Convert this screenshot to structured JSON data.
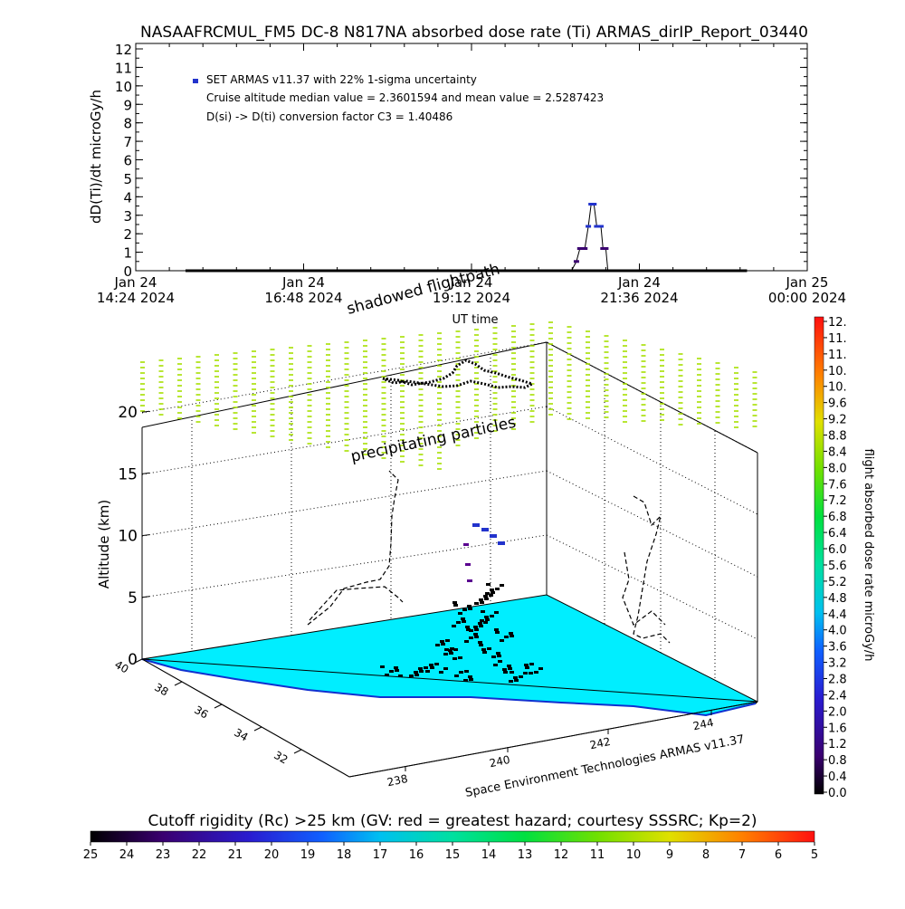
{
  "header": {
    "title": "NASAAFRCMUL_FM5 DC-8   N817NA absorbed dose rate (Ti) ARMAS_dirIP_Report_03440"
  },
  "chart_data": [
    {
      "type": "line",
      "title": "NASAAFRCMUL_FM5 DC-8   N817NA absorbed dose rate (Ti) ARMAS_dirIP_Report_03440",
      "ylabel": "dD(Ti)/dt microGy/h",
      "xlabel": "UT time",
      "ylim": [
        0,
        12
      ],
      "yticks": [
        "0",
        "1",
        "2",
        "3",
        "4",
        "5",
        "6",
        "7",
        "8",
        "9",
        "10",
        "11",
        "12"
      ],
      "xticks": [
        {
          "l1": "Jan 24",
          "l2": "14:24 2024"
        },
        {
          "l1": "Jan 24",
          "l2": "16:48 2024"
        },
        {
          "l1": "Jan 24",
          "l2": "19:12 2024"
        },
        {
          "l1": "Jan 24",
          "l2": "21:36 2024"
        },
        {
          "l1": "Jan 25",
          "l2": "00:00 2024"
        }
      ],
      "legend": {
        "series_label": "SET ARMAS v11.37 with 22% 1-sigma uncertainty",
        "line2": "Cruise altitude median value = 2.3601594 and mean value = 2.5287423",
        "line3": "D(si) -> D(ti) conversion factor C3 = 1.40486"
      },
      "series": [
        {
          "name": "SET ARMAS v11.37 with 22% 1-sigma uncertainty",
          "x_unit": "hours since Jan 24 00:00 UT",
          "points": [
            [
              15.15,
              0.0
            ],
            [
              16.0,
              0.0
            ],
            [
              17.0,
              0.0
            ],
            [
              18.0,
              0.0
            ],
            [
              19.0,
              0.0
            ],
            [
              20.0,
              0.0
            ],
            [
              20.63,
              0.0
            ],
            [
              20.7,
              0.5
            ],
            [
              20.75,
              1.2
            ],
            [
              20.82,
              1.2
            ],
            [
              20.87,
              2.4
            ],
            [
              20.91,
              3.6
            ],
            [
              20.95,
              3.6
            ],
            [
              20.99,
              2.4
            ],
            [
              21.05,
              2.4
            ],
            [
              21.08,
              1.2
            ],
            [
              21.12,
              1.2
            ],
            [
              21.15,
              0.0
            ],
            [
              21.5,
              0.0
            ],
            [
              22.0,
              0.0
            ],
            [
              22.5,
              0.0
            ],
            [
              23.0,
              0.0
            ],
            [
              23.1,
              0.0
            ]
          ]
        }
      ]
    },
    {
      "type": "scatter",
      "ylabel": "Altitude (km)",
      "zticks": [
        "0",
        "5",
        "10",
        "15",
        "20"
      ],
      "lat_ticks": [
        "40",
        "38",
        "36",
        "34",
        "32"
      ],
      "lon_ticks": [
        "238",
        "240",
        "242",
        "244"
      ],
      "labels": {
        "shadowed": "shadowed flightpath",
        "precip": "precipitating particles",
        "credit": "Space Environment Technologies ARMAS v11.37"
      }
    }
  ],
  "colorbar_right": {
    "label": "flight absorbed dose rate microGy/h",
    "ticks": [
      "12.",
      "11.",
      "11.",
      "10.",
      "10.",
      "9.6",
      "9.2",
      "8.8",
      "8.4",
      "8.0",
      "7.6",
      "7.2",
      "6.8",
      "6.4",
      "6.0",
      "5.6",
      "5.2",
      "4.8",
      "4.4",
      "4.0",
      "3.6",
      "3.2",
      "2.8",
      "2.4",
      "2.0",
      "1.6",
      "1.2",
      "0.8",
      "0.4",
      "0.0"
    ]
  },
  "colorbar_bottom": {
    "label": "Cutoff rigidity (Rc) >25 km (GV: red = greatest hazard; courtesy SSSRC; Kp=2)",
    "ticks": [
      "25",
      "24",
      "23",
      "22",
      "21",
      "20",
      "19",
      "18",
      "17",
      "16",
      "15",
      "14",
      "13",
      "12",
      "11",
      "10",
      "9",
      "8",
      "7",
      "6",
      "5"
    ]
  },
  "colors": {
    "ground": "#00eeff",
    "precip": "#88dd00",
    "dose_black": "#000000",
    "dose_blue": "#2233cc"
  }
}
